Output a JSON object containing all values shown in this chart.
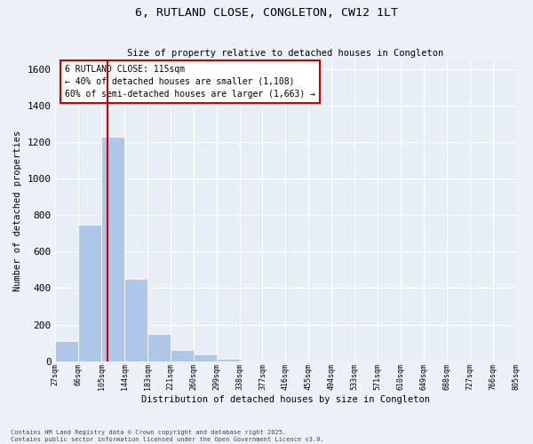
{
  "title": "6, RUTLAND CLOSE, CONGLETON, CW12 1LT",
  "subtitle": "Size of property relative to detached houses in Congleton",
  "xlabel": "Distribution of detached houses by size in Congleton",
  "ylabel": "Number of detached properties",
  "bins": [
    "27sqm",
    "66sqm",
    "105sqm",
    "144sqm",
    "183sqm",
    "221sqm",
    "260sqm",
    "299sqm",
    "338sqm",
    "377sqm",
    "416sqm",
    "455sqm",
    "494sqm",
    "533sqm",
    "571sqm",
    "610sqm",
    "649sqm",
    "688sqm",
    "727sqm",
    "766sqm",
    "805sqm"
  ],
  "bin_edges": [
    27,
    66,
    105,
    144,
    183,
    221,
    260,
    299,
    338,
    377,
    416,
    455,
    494,
    533,
    571,
    610,
    649,
    688,
    727,
    766,
    805
  ],
  "counts": [
    110,
    750,
    1230,
    450,
    150,
    60,
    35,
    15,
    3,
    0,
    0,
    0,
    0,
    0,
    0,
    0,
    0,
    0,
    0,
    0
  ],
  "bar_color": "#aec6e8",
  "vline_x": 115,
  "vline_color": "#cc0000",
  "annotation_line1": "6 RUTLAND CLOSE: 115sqm",
  "annotation_line2": "← 40% of detached houses are smaller (1,108)",
  "annotation_line3": "60% of semi-detached houses are larger (1,663) →",
  "annotation_box_color": "#cc0000",
  "ylim": [
    0,
    1650
  ],
  "yticks": [
    0,
    200,
    400,
    600,
    800,
    1000,
    1200,
    1400,
    1600
  ],
  "background_color": "#e8eef5",
  "fig_background": "#edf1f7",
  "grid_color": "#ffffff",
  "footer": "Contains HM Land Registry data © Crown copyright and database right 2025.\nContains public sector information licensed under the Open Government Licence v3.0."
}
